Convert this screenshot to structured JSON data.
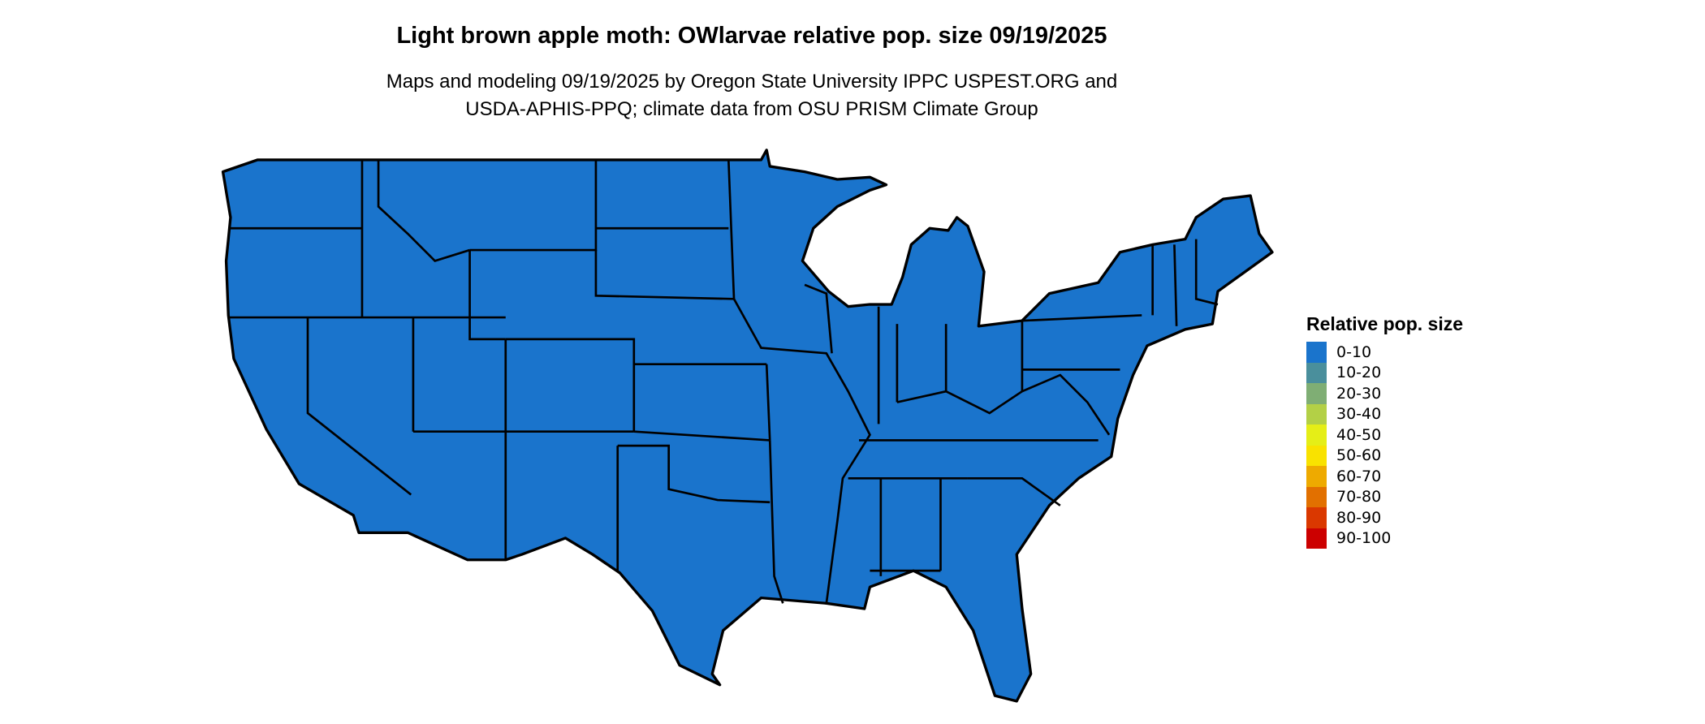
{
  "title": "Light brown apple moth: OWlarvae relative pop. size 09/19/2025",
  "subtitle_line1": "Maps and modeling 09/19/2025 by Oregon State University IPPC USPEST.ORG and",
  "subtitle_line2": "USDA-APHIS-PPQ; climate data from OSU PRISM Climate Group",
  "map": {
    "region": "Contiguous United States",
    "fill_color": "#1a74cc",
    "border_color": "#000000",
    "dominant_class": "0-10"
  },
  "legend": {
    "title": "Relative pop. size",
    "items": [
      {
        "label": "0-10",
        "color": "#1a74cc"
      },
      {
        "label": "10-20",
        "color": "#4a8f9c"
      },
      {
        "label": "20-30",
        "color": "#7fae74"
      },
      {
        "label": "30-40",
        "color": "#b3d046"
      },
      {
        "label": "40-50",
        "color": "#e5ee17"
      },
      {
        "label": "50-60",
        "color": "#f9e200"
      },
      {
        "label": "60-70",
        "color": "#eeaa00"
      },
      {
        "label": "70-80",
        "color": "#e27000"
      },
      {
        "label": "80-90",
        "color": "#da3800"
      },
      {
        "label": "90-100",
        "color": "#cc0000"
      }
    ]
  }
}
